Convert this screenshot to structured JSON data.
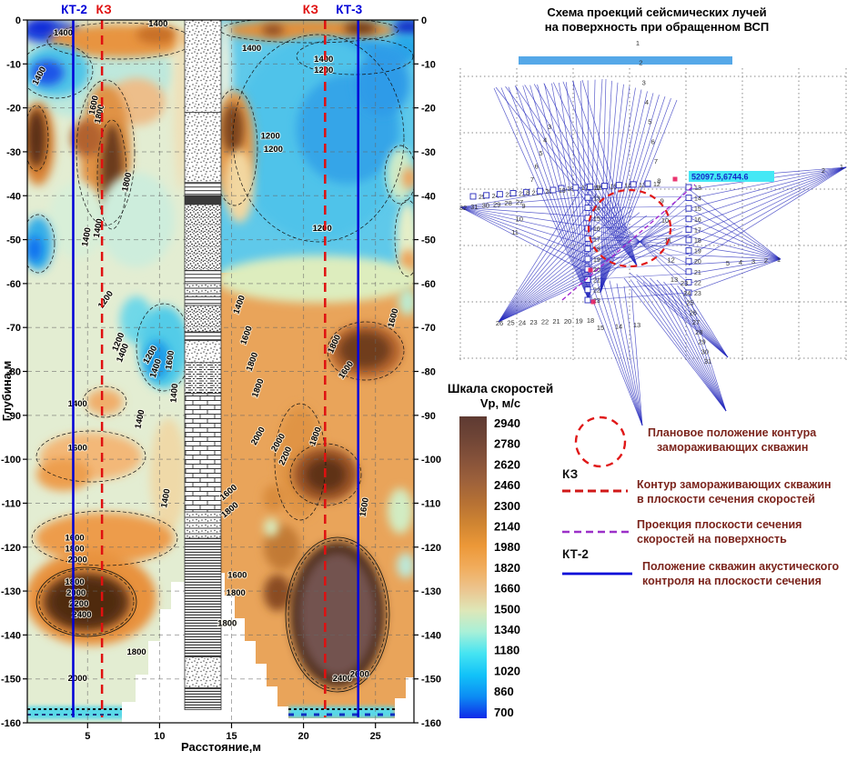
{
  "star_panel": {
    "title_line1": "Схема проекций сейсмических лучей",
    "title_line2": "на поверхность при обращенном ВСП",
    "coord_label": "52097.5,6744.6",
    "ray_color": "#2428BC",
    "bar_color": "#55A8E8",
    "circle_color": "#E01818",
    "fans": [
      {
        "a": [
          648,
          332
        ],
        "f": [
          543,
          97
        ],
        "t": [
          662,
          87
        ],
        "n": 16
      },
      {
        "a": [
          660,
          322
        ],
        "f": [
          666,
          87
        ],
        "t": [
          744,
          110
        ],
        "n": 13
      },
      {
        "a": [
          700,
          292
        ],
        "f": [
          545,
          96
        ],
        "t": [
          640,
          88
        ],
        "n": 10
      },
      {
        "a": [
          858,
          285
        ],
        "f": [
          757,
          208
        ],
        "t": [
          757,
          322
        ],
        "n": 12
      },
      {
        "a": [
          930,
          184
        ],
        "f": [
          757,
          198
        ],
        "t": [
          757,
          292
        ],
        "n": 10
      },
      {
        "a": [
          798,
          452
        ],
        "f": [
          686,
          306
        ],
        "t": [
          756,
          320
        ],
        "n": 11
      },
      {
        "a": [
          548,
          354
        ],
        "f": [
          640,
          206
        ],
        "t": [
          758,
          258
        ],
        "n": 16
      },
      {
        "a": [
          506,
          228
        ],
        "f": [
          640,
          206
        ],
        "t": [
          650,
          302
        ],
        "n": 10
      },
      {
        "a": [
          706,
          468
        ],
        "f": [
          638,
          296
        ],
        "t": [
          694,
          318
        ],
        "n": 8
      },
      {
        "a": [
          800,
          393
        ],
        "f": [
          692,
          300
        ],
        "t": [
          752,
          316
        ],
        "n": 9
      }
    ],
    "number_rows": [
      {
        "nums": [
          "1",
          "2",
          "3",
          "4",
          "5",
          "6",
          "7",
          "8",
          "9",
          "10",
          "11",
          "12",
          "13"
        ],
        "f": [
          701,
          50
        ],
        "t": [
          741,
          310
        ]
      },
      {
        "nums": [
          "5",
          "4",
          "3",
          "2",
          "1"
        ],
        "f": [
          800,
          292
        ],
        "t": [
          856,
          288
        ]
      },
      {
        "nums": [
          "2",
          "1"
        ],
        "f": [
          905,
          190
        ],
        "t": [
          925,
          186
        ]
      },
      {
        "nums": [
          "26",
          "25",
          "24",
          "23",
          "22",
          "21",
          "20",
          "19",
          "18"
        ],
        "f": [
          549,
          358
        ],
        "t": [
          649,
          355
        ]
      },
      {
        "nums": [
          "32",
          "31",
          "30",
          "29",
          "28",
          "27"
        ],
        "f": [
          509,
          231
        ],
        "t": [
          571,
          225
        ]
      },
      {
        "nums": [
          "23",
          "24",
          "25",
          "26",
          "27",
          "28",
          "29",
          "30",
          "31"
        ],
        "f": [
          752,
          314
        ],
        "t": [
          778,
          400
        ]
      },
      {
        "nums": [
          "15",
          "14",
          "13"
        ],
        "f": [
          660,
          363
        ],
        "t": [
          700,
          360
        ]
      },
      {
        "nums": [
          "3",
          "4",
          "5",
          "6",
          "7",
          "8",
          "9",
          "10",
          "11"
        ],
        "f": [
          604,
          142
        ],
        "t": [
          566,
          258
        ]
      }
    ],
    "square_cols": [
      {
        "f": [
          646,
          206
        ],
        "t": [
          646,
          330
        ],
        "nums": [
          "12",
          "13",
          "14",
          "15",
          "16",
          "17",
          "18",
          "19",
          "20",
          "21",
          "22",
          "23"
        ]
      },
      {
        "f": [
          757,
          206
        ],
        "t": [
          757,
          322
        ],
        "nums": [
          "13",
          "14",
          "15",
          "16",
          "17",
          "18",
          "19",
          "20",
          "21",
          "22",
          "23"
        ]
      },
      {
        "f": [
          617,
          207
        ],
        "t": [
          712,
          202
        ],
        "nums": [
          "18",
          "17",
          "16",
          "15",
          "14",
          "13",
          "12"
        ]
      },
      {
        "f": [
          520,
          216
        ],
        "t": [
          608,
          209
        ],
        "nums": [
          "25",
          "24",
          "23",
          "22",
          "21",
          "20",
          "19"
        ]
      }
    ]
  },
  "chart_data": {
    "type": "heatmap",
    "title": "",
    "xlabel": "Расстояние,м",
    "ylabel": "Глубина,м",
    "xlim": [
      0.8,
      27.7
    ],
    "ylim": [
      -160,
      0
    ],
    "grid": true,
    "x_ticks": [
      5,
      10,
      15,
      20,
      25
    ],
    "y_ticks": [
      0,
      -10,
      -20,
      -30,
      -40,
      -50,
      -60,
      -70,
      -80,
      -90,
      -100,
      -110,
      -120,
      -130,
      -140,
      -150,
      -160
    ],
    "wells": [
      {
        "label": "КТ-2",
        "x_m": 4.0,
        "style": "solid",
        "color": "#0000D8"
      },
      {
        "label": "КЗ",
        "x_m": 6.0,
        "style": "dashed",
        "color": "#E01010"
      },
      {
        "label": "КЗ",
        "x_m": 21.5,
        "style": "dashed",
        "color": "#E01010"
      },
      {
        "label": "КТ-3",
        "x_m": 23.8,
        "style": "solid",
        "color": "#0000D8"
      }
    ],
    "colorbar": {
      "title": "Шкала скоростей",
      "subtitle": "Vp, м/с",
      "values": [
        2940,
        2780,
        2620,
        2460,
        2300,
        2140,
        1980,
        1820,
        1660,
        1500,
        1340,
        1180,
        1020,
        860,
        700
      ],
      "colors": [
        "#5E3A32",
        "#6F4536",
        "#86523A",
        "#9D613B",
        "#B67134",
        "#D08532",
        "#EC9838",
        "#F1AC5C",
        "#ECC48E",
        "#DEE7B8",
        "#A8F0D8",
        "#45E4F2",
        "#12C2F8",
        "#0C8CF4",
        "#0F2AE8"
      ]
    },
    "contour_labels_left": [
      [
        1400,
        3.3,
        3.5,
        0
      ],
      [
        1400,
        1.8,
        13,
        -62
      ],
      [
        1600,
        5.6,
        19.5,
        -78
      ],
      [
        1800,
        6.0,
        21.5,
        -78
      ],
      [
        1400,
        9.9,
        1.5,
        0
      ],
      [
        1800,
        7.9,
        37,
        -78
      ],
      [
        1400,
        5.9,
        47.5,
        -80
      ],
      [
        1400,
        5.1,
        49.5,
        -80
      ],
      [
        1200,
        6.4,
        64,
        -55
      ],
      [
        1200,
        7.3,
        73.5,
        -68
      ],
      [
        1400,
        7.6,
        76,
        -68
      ],
      [
        1200,
        9.5,
        76.5,
        -60
      ],
      [
        1400,
        9.9,
        79.5,
        -72
      ],
      [
        1600,
        10.9,
        77.5,
        -82
      ],
      [
        1400,
        11.2,
        85,
        -85
      ],
      [
        1400,
        8.8,
        91,
        -78
      ],
      [
        1400,
        4.3,
        88,
        0
      ],
      [
        1600,
        4.3,
        98,
        0
      ],
      [
        1600,
        4.1,
        118.5,
        0
      ],
      [
        1800,
        4.1,
        121,
        0
      ],
      [
        2000,
        4.3,
        123.5,
        0
      ],
      [
        1800,
        4.1,
        128.5,
        0
      ],
      [
        2000,
        4.2,
        131,
        0
      ],
      [
        2200,
        4.4,
        133.5,
        0
      ],
      [
        2400,
        4.6,
        136,
        0
      ],
      [
        1800,
        8.4,
        144.5,
        0
      ],
      [
        2000,
        4.3,
        150.5,
        0
      ],
      [
        1400,
        10.6,
        109,
        -80
      ]
    ],
    "contour_labels_right": [
      [
        1400,
        16.4,
        7,
        0
      ],
      [
        1400,
        21.4,
        9.5,
        0
      ],
      [
        1200,
        21.4,
        12,
        0
      ],
      [
        1200,
        17.7,
        27,
        0
      ],
      [
        1200,
        17.9,
        30,
        0
      ],
      [
        1200,
        21.3,
        48,
        0
      ],
      [
        1400,
        15.7,
        65,
        -70
      ],
      [
        1600,
        16.2,
        72,
        -70
      ],
      [
        1800,
        16.6,
        78,
        -70
      ],
      [
        1800,
        17.0,
        84,
        -70
      ],
      [
        1600,
        26.4,
        68,
        -75
      ],
      [
        1800,
        22.3,
        74,
        -65
      ],
      [
        1600,
        23.1,
        80,
        -55
      ],
      [
        2000,
        17.0,
        95,
        -60
      ],
      [
        2000,
        18.4,
        96.5,
        -60
      ],
      [
        2200,
        18.9,
        99.5,
        -65
      ],
      [
        1800,
        21.0,
        95,
        -70
      ],
      [
        1600,
        24.4,
        111,
        -80
      ],
      [
        1600,
        14.9,
        108,
        -40
      ],
      [
        1800,
        15.0,
        112,
        -40
      ],
      [
        1600,
        15.4,
        127,
        0
      ],
      [
        1800,
        15.3,
        131,
        0
      ],
      [
        1800,
        14.7,
        138,
        0
      ],
      [
        2400,
        22.7,
        150.5,
        0
      ],
      [
        2600,
        23.9,
        149.5,
        0
      ]
    ],
    "lithology": [
      {
        "from": 0,
        "to": 21,
        "pattern": "speckle"
      },
      {
        "from": 21,
        "to": 37,
        "pattern": "speckle"
      },
      {
        "from": 37,
        "to": 40,
        "pattern": "hlines"
      },
      {
        "from": 40,
        "to": 42,
        "pattern": "dark"
      },
      {
        "from": 42,
        "to": 57,
        "pattern": "speckle-dense"
      },
      {
        "from": 57,
        "to": 60,
        "pattern": "hlines"
      },
      {
        "from": 60,
        "to": 63,
        "pattern": "dotlines"
      },
      {
        "from": 63,
        "to": 65,
        "pattern": "hlines"
      },
      {
        "from": 65,
        "to": 71,
        "pattern": "speckle-dense"
      },
      {
        "from": 71,
        "to": 73,
        "pattern": "hlines"
      },
      {
        "from": 73,
        "to": 78,
        "pattern": "speckle"
      },
      {
        "from": 78,
        "to": 85,
        "pattern": "dashdot"
      },
      {
        "from": 85,
        "to": 112,
        "pattern": "brick"
      },
      {
        "from": 112,
        "to": 118,
        "pattern": "dotlines"
      },
      {
        "from": 118,
        "to": 145,
        "pattern": "hlines-dense"
      },
      {
        "from": 145,
        "to": 152,
        "pattern": "speckle"
      },
      {
        "from": 152,
        "to": 157,
        "pattern": "hlines-dense"
      }
    ]
  },
  "legend": {
    "text_color": "#7B241C",
    "items": [
      {
        "symbol": "circle-red-dashed",
        "label": "",
        "line1": "Плановое положение контура",
        "line2": "замораживающих скважин"
      },
      {
        "symbol": "dash-red",
        "label": "КЗ",
        "line1": "Контур замораживающих скважин",
        "line2": "в плоскости сечения скоростей"
      },
      {
        "symbol": "dash-purple",
        "label": "",
        "line1": "Проекция плоскости сечения",
        "line2": "скоростей  на поверхность"
      },
      {
        "symbol": "line-blue",
        "label": "КТ-2",
        "line1": "Положение скважин акустического",
        "line2": "контроля на плоскости сечения"
      }
    ]
  }
}
